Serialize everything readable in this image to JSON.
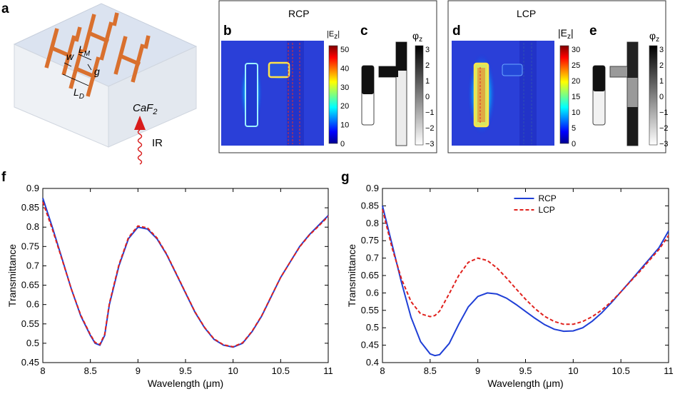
{
  "panel_labels": {
    "a": "a",
    "b": "b",
    "c": "c",
    "d": "d",
    "e": "e",
    "f": "f",
    "g": "g"
  },
  "schematic": {
    "dims": {
      "w": "w",
      "lm": "L",
      "lm_sub": "M",
      "g": "g",
      "ld": "L",
      "ld_sub": "D"
    },
    "substrate": "CaF",
    "substrate_sub": "2",
    "source": "IR",
    "colors": {
      "substrate_top": "#dde4f0",
      "substrate_side": "#eef1f6",
      "antenna": "#d9702e",
      "beam": "#d81b1b"
    }
  },
  "field_maps": {
    "rcp": {
      "title": "RCP",
      "e_label": "|E",
      "e_sub": "z",
      "e_label_end": "|",
      "e_ticks": [
        "50",
        "40",
        "30",
        "20",
        "10",
        "0"
      ],
      "phi_label": "φ",
      "phi_sub": "z",
      "phi_ticks": [
        "3",
        "2",
        "1",
        "0",
        "−1",
        "−2",
        "−3"
      ]
    },
    "lcp": {
      "title": "LCP",
      "e_label": "|E",
      "e_sub": "z",
      "e_label_end": "|",
      "e_ticks": [
        "30",
        "25",
        "20",
        "15",
        "10",
        "5",
        "0"
      ],
      "phi_label": "φ",
      "phi_sub": "z",
      "phi_ticks": [
        "3",
        "2",
        "1",
        "0",
        "−1",
        "−2",
        "−3"
      ]
    }
  },
  "chart_data": [
    {
      "id": "f",
      "type": "line",
      "title": "",
      "xlabel": "Wavelength (μm)",
      "ylabel": "Transmittance",
      "xlim": [
        8,
        11
      ],
      "ylim": [
        0.45,
        0.9
      ],
      "xticks": [
        "8",
        "8.5",
        "9",
        "9.5",
        "10",
        "10.5",
        "11"
      ],
      "yticks": [
        "0.45",
        "0.5",
        "0.55",
        "0.6",
        "0.65",
        "0.7",
        "0.75",
        "0.8",
        "0.85",
        "0.9"
      ],
      "legend": null,
      "series": [
        {
          "name": "RCP",
          "color": "#1f3fd6",
          "dash": "none",
          "x": [
            8.0,
            8.1,
            8.2,
            8.3,
            8.4,
            8.5,
            8.55,
            8.6,
            8.65,
            8.7,
            8.8,
            8.9,
            9.0,
            9.1,
            9.2,
            9.3,
            9.4,
            9.5,
            9.6,
            9.7,
            9.8,
            9.9,
            10.0,
            10.1,
            10.2,
            10.3,
            10.4,
            10.5,
            10.6,
            10.7,
            10.8,
            10.9,
            11.0
          ],
          "y": [
            0.875,
            0.8,
            0.72,
            0.64,
            0.57,
            0.52,
            0.5,
            0.495,
            0.52,
            0.6,
            0.7,
            0.77,
            0.8,
            0.795,
            0.77,
            0.73,
            0.68,
            0.63,
            0.58,
            0.54,
            0.51,
            0.495,
            0.49,
            0.5,
            0.53,
            0.57,
            0.62,
            0.67,
            0.71,
            0.75,
            0.78,
            0.805,
            0.83
          ]
        },
        {
          "name": "LCP",
          "color": "#e0211d",
          "dash": "5,3",
          "x": [
            8.0,
            8.1,
            8.2,
            8.3,
            8.4,
            8.5,
            8.55,
            8.6,
            8.65,
            8.7,
            8.8,
            8.9,
            9.0,
            9.1,
            9.2,
            9.3,
            9.4,
            9.5,
            9.6,
            9.7,
            9.8,
            9.9,
            10.0,
            10.1,
            10.2,
            10.3,
            10.4,
            10.5,
            10.6,
            10.7,
            10.8,
            10.9,
            11.0
          ],
          "y": [
            0.865,
            0.795,
            0.718,
            0.64,
            0.572,
            0.522,
            0.502,
            0.497,
            0.523,
            0.603,
            0.703,
            0.773,
            0.803,
            0.798,
            0.772,
            0.731,
            0.681,
            0.631,
            0.581,
            0.541,
            0.511,
            0.496,
            0.491,
            0.501,
            0.531,
            0.571,
            0.621,
            0.67,
            0.71,
            0.749,
            0.779,
            0.803,
            0.828
          ]
        }
      ]
    },
    {
      "id": "g",
      "type": "line",
      "title": "",
      "xlabel": "Wavelength (μm)",
      "ylabel": "Transmittance",
      "xlim": [
        8,
        11
      ],
      "ylim": [
        0.4,
        0.9
      ],
      "xticks": [
        "8",
        "8.5",
        "9",
        "9.5",
        "10",
        "10.5",
        "11"
      ],
      "yticks": [
        "0.4",
        "0.45",
        "0.5",
        "0.55",
        "0.6",
        "0.65",
        "0.7",
        "0.75",
        "0.8",
        "0.85",
        "0.9"
      ],
      "legend": "top-center",
      "series": [
        {
          "name": "RCP",
          "color": "#1f3fd6",
          "dash": "none",
          "x": [
            8.0,
            8.1,
            8.2,
            8.3,
            8.4,
            8.5,
            8.55,
            8.6,
            8.7,
            8.8,
            8.9,
            9.0,
            9.1,
            9.2,
            9.3,
            9.4,
            9.5,
            9.6,
            9.7,
            9.8,
            9.9,
            10.0,
            10.1,
            10.2,
            10.3,
            10.4,
            10.5,
            10.6,
            10.7,
            10.8,
            10.9,
            11.0
          ],
          "y": [
            0.85,
            0.74,
            0.63,
            0.53,
            0.46,
            0.425,
            0.42,
            0.423,
            0.455,
            0.51,
            0.56,
            0.59,
            0.6,
            0.597,
            0.585,
            0.567,
            0.547,
            0.527,
            0.509,
            0.496,
            0.49,
            0.491,
            0.5,
            0.519,
            0.543,
            0.572,
            0.603,
            0.634,
            0.666,
            0.698,
            0.73,
            0.778
          ]
        },
        {
          "name": "LCP",
          "color": "#e0211d",
          "dash": "5,3",
          "x": [
            8.0,
            8.1,
            8.2,
            8.3,
            8.4,
            8.5,
            8.55,
            8.6,
            8.7,
            8.8,
            8.9,
            9.0,
            9.1,
            9.2,
            9.3,
            9.4,
            9.5,
            9.6,
            9.7,
            9.8,
            9.9,
            10.0,
            10.1,
            10.2,
            10.3,
            10.4,
            10.5,
            10.6,
            10.7,
            10.8,
            10.9,
            11.0
          ],
          "y": [
            0.84,
            0.73,
            0.64,
            0.575,
            0.54,
            0.532,
            0.535,
            0.548,
            0.598,
            0.65,
            0.688,
            0.7,
            0.693,
            0.672,
            0.643,
            0.612,
            0.582,
            0.555,
            0.533,
            0.518,
            0.51,
            0.51,
            0.518,
            0.532,
            0.551,
            0.575,
            0.603,
            0.633,
            0.662,
            0.694,
            0.725,
            0.765
          ]
        }
      ]
    }
  ]
}
